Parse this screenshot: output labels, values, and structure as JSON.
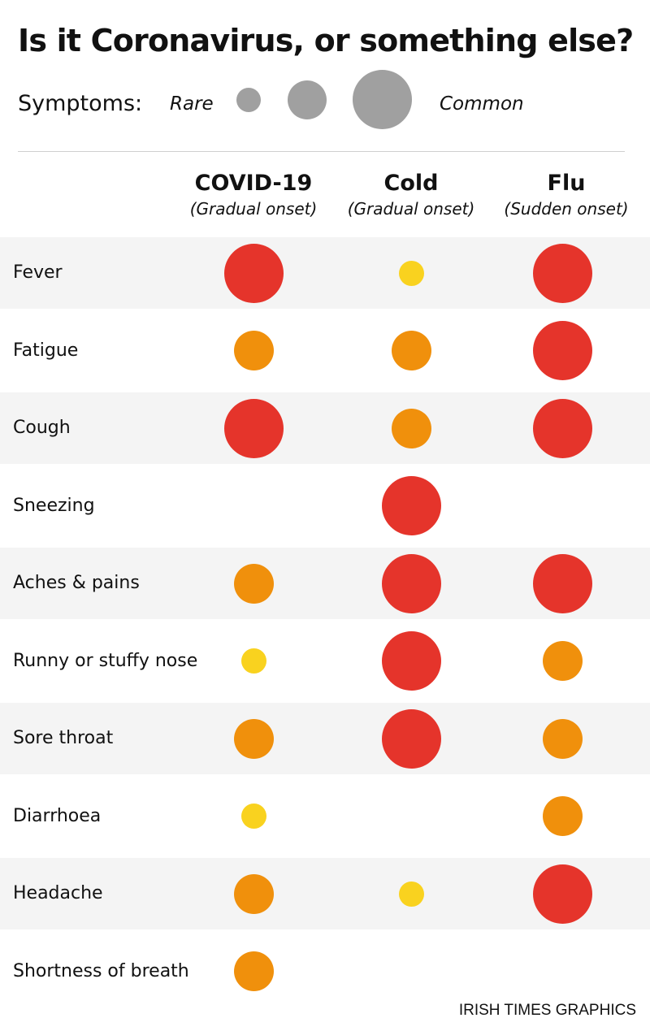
{
  "title": "Is it Coronavirus, or something else?",
  "legend": {
    "label": "Symptoms:",
    "rare_label": "Rare",
    "common_label": "Common",
    "color": "#a0a0a0"
  },
  "source": "IRISH TIMES GRAPHICS",
  "colors": {
    "rare": "#f9d21f",
    "sometimes": "#f0900c",
    "common": "#e5342b",
    "row_band": "#f4f4f4"
  },
  "chart_data": {
    "type": "table",
    "columns": [
      {
        "name": "COVID-19",
        "subtitle": "(Gradual onset)"
      },
      {
        "name": "Cold",
        "subtitle": "(Gradual onset)"
      },
      {
        "name": "Flu",
        "subtitle": "(Sudden onset)"
      }
    ],
    "scale": [
      "none",
      "rare",
      "sometimes",
      "common"
    ],
    "rows": [
      {
        "symptom": "Fever",
        "values": [
          3,
          1,
          3
        ]
      },
      {
        "symptom": "Fatigue",
        "values": [
          2,
          2,
          3
        ]
      },
      {
        "symptom": "Cough",
        "values": [
          3,
          2,
          3
        ]
      },
      {
        "symptom": "Sneezing",
        "values": [
          0,
          3,
          0
        ]
      },
      {
        "symptom": "Aches & pains",
        "values": [
          2,
          3,
          3
        ]
      },
      {
        "symptom": "Runny or stuffy nose",
        "values": [
          1,
          3,
          2
        ]
      },
      {
        "symptom": "Sore throat",
        "values": [
          2,
          3,
          2
        ]
      },
      {
        "symptom": "Diarrhoea",
        "values": [
          1,
          0,
          2
        ]
      },
      {
        "symptom": "Headache",
        "values": [
          2,
          1,
          3
        ]
      },
      {
        "symptom": "Shortness of breath",
        "values": [
          2,
          0,
          0
        ]
      }
    ]
  }
}
